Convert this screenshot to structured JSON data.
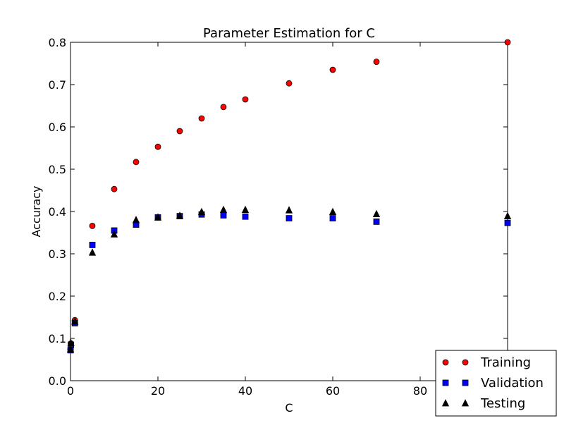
{
  "chart_data": {
    "type": "scatter",
    "title": "Parameter Estimation for C",
    "xlabel": "C",
    "ylabel": "Accuracy",
    "xlim": [
      0,
      100
    ],
    "ylim": [
      0.0,
      0.8
    ],
    "xticks": [
      0,
      20,
      40,
      60,
      80
    ],
    "xtick_labels": [
      "0",
      "20",
      "40",
      "60",
      "80"
    ],
    "yticks": [
      0.0,
      0.1,
      0.2,
      0.3,
      0.4,
      0.5,
      0.6,
      0.7,
      0.8
    ],
    "ytick_labels": [
      "0.0",
      "0.1",
      "0.2",
      "0.3",
      "0.4",
      "0.5",
      "0.6",
      "0.7",
      "0.8"
    ],
    "grid": false,
    "legend_position": "bottom-right",
    "x": [
      0.01,
      0.1,
      1,
      5,
      10,
      15,
      20,
      25,
      30,
      35,
      40,
      50,
      60,
      70,
      100
    ],
    "series": [
      {
        "name": "Training",
        "marker": "circle",
        "color": "#ff0000",
        "values": [
          0.074,
          0.088,
          0.143,
          0.366,
          0.453,
          0.517,
          0.553,
          0.59,
          0.62,
          0.647,
          0.665,
          0.703,
          0.735,
          0.754,
          0.8
        ]
      },
      {
        "name": "Validation",
        "marker": "square",
        "color": "#0000ff",
        "values": [
          0.072,
          0.085,
          0.136,
          0.321,
          0.355,
          0.369,
          0.386,
          0.389,
          0.393,
          0.391,
          0.388,
          0.384,
          0.384,
          0.376,
          0.373
        ]
      },
      {
        "name": "Testing",
        "marker": "triangle",
        "color": "#000000",
        "values": [
          0.074,
          0.089,
          0.14,
          0.303,
          0.346,
          0.38,
          0.386,
          0.39,
          0.399,
          0.404,
          0.404,
          0.403,
          0.399,
          0.394,
          0.389
        ]
      }
    ]
  }
}
